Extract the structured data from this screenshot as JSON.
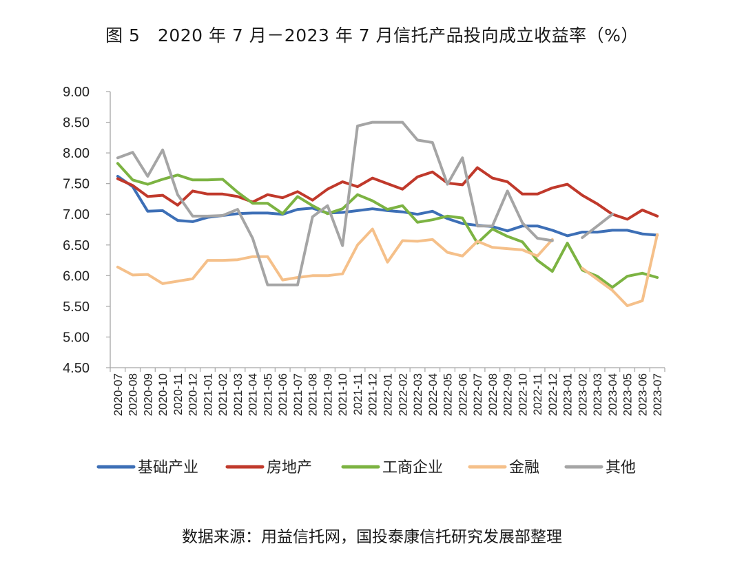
{
  "title": "图 5　2020 年 7 月－2023 年 7 月信托产品投向成立收益率（%）",
  "source": "数据来源：用益信托网，国投泰康信托研究发展部整理",
  "chart_data": {
    "type": "line",
    "ylim": [
      4.5,
      9.0
    ],
    "yticks": [
      "4.50",
      "5.00",
      "5.50",
      "6.00",
      "6.50",
      "7.00",
      "7.50",
      "8.00",
      "8.50",
      "9.00"
    ],
    "legend_position": "bottom",
    "grid": false,
    "categories": [
      "2020-07",
      "2020-08",
      "2020-09",
      "2020-10",
      "2020-11",
      "2020-12",
      "2021-01",
      "2021-02",
      "2021-03",
      "2021-04",
      "2021-05",
      "2021-06",
      "2021-07",
      "2021-08",
      "2021-09",
      "2021-10",
      "2021-11",
      "2021-12",
      "2022-01",
      "2022-02",
      "2022-03",
      "2022-04",
      "2022-05",
      "2022-06",
      "2022-07",
      "2022-08",
      "2022-09",
      "2022-10",
      "2022-11",
      "2022-12",
      "2023-01",
      "2023-02",
      "2023-03",
      "2023-04",
      "2023-05",
      "2023-06",
      "2023-07"
    ],
    "series": [
      {
        "name": "基础产业",
        "color": "#3d6fb6",
        "values": [
          7.62,
          7.45,
          7.05,
          7.06,
          6.9,
          6.88,
          6.95,
          6.98,
          7.01,
          7.02,
          7.02,
          7.0,
          7.08,
          7.1,
          7.02,
          7.03,
          7.06,
          7.09,
          7.06,
          7.04,
          7.0,
          7.05,
          6.93,
          6.85,
          6.82,
          6.8,
          6.73,
          6.81,
          6.81,
          6.74,
          6.65,
          6.71,
          6.71,
          6.74,
          6.74,
          6.68,
          6.66
        ]
      },
      {
        "name": "房地产",
        "color": "#c0392b",
        "values": [
          7.58,
          7.47,
          7.29,
          7.31,
          7.15,
          7.38,
          7.33,
          7.33,
          7.29,
          7.2,
          7.32,
          7.27,
          7.37,
          7.23,
          7.41,
          7.53,
          7.45,
          7.59,
          7.5,
          7.41,
          7.61,
          7.69,
          7.51,
          7.48,
          7.76,
          7.59,
          7.53,
          7.33,
          7.33,
          7.43,
          7.49,
          7.31,
          7.17,
          7.0,
          6.92,
          7.07,
          6.97
        ]
      },
      {
        "name": "工商企业",
        "color": "#7cb342",
        "values": [
          7.83,
          7.56,
          7.49,
          7.57,
          7.64,
          7.56,
          7.56,
          7.57,
          7.36,
          7.18,
          7.18,
          7.01,
          7.29,
          7.14,
          7.01,
          7.09,
          7.32,
          7.22,
          7.08,
          7.14,
          6.87,
          6.91,
          6.97,
          6.94,
          6.53,
          6.76,
          6.64,
          6.55,
          6.25,
          6.07,
          6.53,
          6.09,
          5.99,
          5.81,
          5.99,
          6.04,
          5.97
        ]
      },
      {
        "name": "金融",
        "color": "#f5c08a",
        "values": [
          6.14,
          6.01,
          6.02,
          5.87,
          5.91,
          5.95,
          6.25,
          6.25,
          6.26,
          6.31,
          6.31,
          5.93,
          5.97,
          6.0,
          6.0,
          6.03,
          6.5,
          6.76,
          6.22,
          6.57,
          6.56,
          6.59,
          6.38,
          6.32,
          6.56,
          6.46,
          6.44,
          6.42,
          6.32,
          6.59,
          null,
          6.12,
          5.94,
          5.76,
          5.51,
          5.59,
          6.67
        ]
      },
      {
        "name": "其他",
        "color": "#a5a5a5",
        "values": [
          7.92,
          8.01,
          7.62,
          8.05,
          7.32,
          6.97,
          6.97,
          6.98,
          7.08,
          6.61,
          5.85,
          5.85,
          5.85,
          6.96,
          7.14,
          6.49,
          8.44,
          8.5,
          8.5,
          8.5,
          8.21,
          8.17,
          7.49,
          7.92,
          6.81,
          6.81,
          7.38,
          6.86,
          6.61,
          6.57,
          null,
          6.62,
          6.81,
          7.0,
          null,
          null,
          null
        ]
      }
    ]
  }
}
